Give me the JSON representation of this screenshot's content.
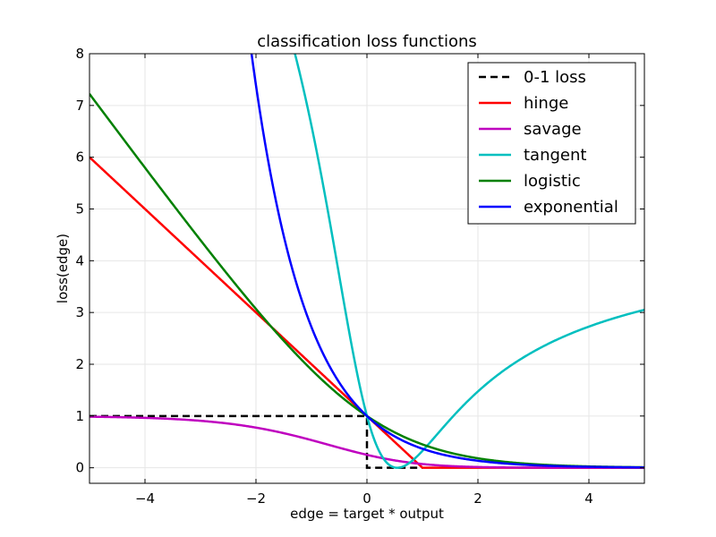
{
  "chart_data": {
    "type": "line",
    "title": "classification loss functions",
    "xlabel": "edge = target * output",
    "ylabel": "loss(edge)",
    "xlim": [
      -5,
      5
    ],
    "ylim": [
      -0.3,
      8
    ],
    "xticks": [
      -4,
      -2,
      0,
      2,
      4
    ],
    "xtick_labels": [
      "−4",
      "−2",
      "0",
      "2",
      "4"
    ],
    "yticks": [
      0,
      1,
      2,
      3,
      4,
      5,
      6,
      7,
      8
    ],
    "ytick_labels": [
      "0",
      "1",
      "2",
      "3",
      "4",
      "5",
      "6",
      "7",
      "8"
    ],
    "grid": true,
    "legend_position": "top-right",
    "series": [
      {
        "name": "0-1 loss",
        "key": "zero_one",
        "color": "#000000",
        "dashed": true,
        "formula": "1 if edge <= 0 else 0"
      },
      {
        "name": "hinge",
        "key": "hinge",
        "color": "#ff0000",
        "dashed": false,
        "formula": "max(0, 1 - edge)"
      },
      {
        "name": "savage",
        "key": "savage",
        "color": "#bf00bf",
        "dashed": false,
        "formula": "1 / (1 + exp(edge))^2"
      },
      {
        "name": "tangent",
        "key": "tangent",
        "color": "#00bfbf",
        "dashed": false,
        "formula": "(2*atan(edge) - 1)^2"
      },
      {
        "name": "logistic",
        "key": "logistic",
        "color": "#008000",
        "dashed": false,
        "formula": "log2(1 + exp(-edge))"
      },
      {
        "name": "exponential",
        "key": "exponential",
        "color": "#0000ff",
        "dashed": false,
        "formula": "exp(-edge)"
      }
    ]
  }
}
